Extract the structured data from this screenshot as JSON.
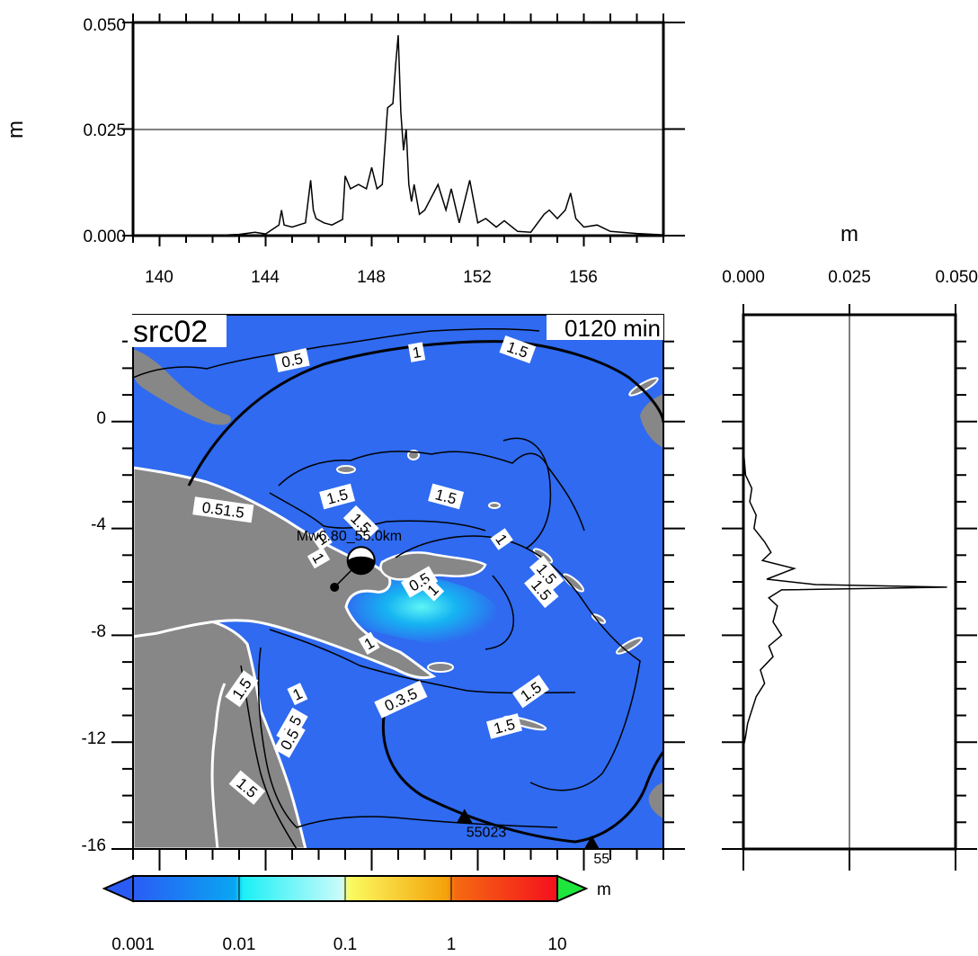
{
  "source_label": "src02",
  "time_label": "0120 min",
  "event_label": "Mw6.80_55.0km",
  "colors": {
    "ocean": "#2f6af0",
    "land": "#878787",
    "coast": "#ffffff",
    "contour": "#000000"
  },
  "stations": [
    {
      "id": "55023",
      "lon": 151.5,
      "lat": -14.8
    },
    {
      "id": "55",
      "lon": 156.3,
      "lat": -15.8
    }
  ],
  "epicenter": {
    "lon": 146.6,
    "lat": -6.2
  },
  "mechanism": {
    "lon": 147.6,
    "lat": -5.2
  },
  "contour_labels": [
    {
      "text": "0.5",
      "lon": 145.0,
      "lat": 2.3,
      "angle": -12
    },
    {
      "text": "1",
      "lon": 149.7,
      "lat": 2.6,
      "angle": -10
    },
    {
      "text": "1.5",
      "lon": 153.5,
      "lat": 2.7,
      "angle": 20
    },
    {
      "text": "0.51.5",
      "lon": 142.4,
      "lat": -3.3,
      "angle": 8
    },
    {
      "text": "1.5",
      "lon": 146.7,
      "lat": -2.8,
      "angle": -15
    },
    {
      "text": "1.5",
      "lon": 150.8,
      "lat": -2.8,
      "angle": 15
    },
    {
      "text": "1.5",
      "lon": 147.6,
      "lat": -3.8,
      "angle": 45
    },
    {
      "text": "1",
      "lon": 146.1,
      "lat": -4.4,
      "angle": -35
    },
    {
      "text": "1",
      "lon": 146.0,
      "lat": -5.1,
      "angle": 60
    },
    {
      "text": "1",
      "lon": 152.9,
      "lat": -4.4,
      "angle": 55
    },
    {
      "text": "0.5",
      "lon": 149.8,
      "lat": -6.0,
      "angle": -30
    },
    {
      "text": "1",
      "lon": 150.3,
      "lat": -6.3,
      "angle": -45
    },
    {
      "text": "1.5",
      "lon": 154.6,
      "lat": -5.7,
      "angle": 50
    },
    {
      "text": "1.5",
      "lon": 154.4,
      "lat": -6.3,
      "angle": 50
    },
    {
      "text": "1",
      "lon": 147.9,
      "lat": -8.3,
      "angle": -30
    },
    {
      "text": "1.5",
      "lon": 143.1,
      "lat": -10.0,
      "angle": -55
    },
    {
      "text": "1",
      "lon": 145.2,
      "lat": -10.2,
      "angle": -25
    },
    {
      "text": "0.3.5",
      "lon": 149.1,
      "lat": -10.4,
      "angle": -25
    },
    {
      "text": "1.5",
      "lon": 154.0,
      "lat": -10.1,
      "angle": -35
    },
    {
      "text": "1.5",
      "lon": 145.0,
      "lat": -11.4,
      "angle": -60
    },
    {
      "text": "0.5",
      "lon": 144.9,
      "lat": -11.9,
      "angle": -60
    },
    {
      "text": "1.5",
      "lon": 153.0,
      "lat": -11.4,
      "angle": -15
    },
    {
      "text": "1.5",
      "lon": 143.3,
      "lat": -13.7,
      "angle": 40
    }
  ],
  "map": {
    "lon_range": [
      139,
      159
    ],
    "lat_range": [
      -16,
      4
    ],
    "lon_ticks": [
      140,
      144,
      148,
      152,
      156
    ],
    "lat_ticks": [
      0,
      -4,
      -8,
      -12,
      -16
    ]
  },
  "top_plot": {
    "ylabel": "m",
    "y_ticks": [
      "0.000",
      "0.025",
      "0.050"
    ],
    "x_ticks": [
      "140",
      "144",
      "148",
      "152",
      "156"
    ]
  },
  "right_plot": {
    "xlabel": "m",
    "x_ticks": [
      "0.000",
      "0.025",
      "0.050"
    ]
  },
  "colorbar": {
    "unit": "m",
    "tick_labels": [
      "0.001",
      "0.01",
      "0.1",
      "1",
      "10"
    ]
  },
  "chart_data": [
    {
      "type": "line",
      "ylabel": "m",
      "ylim": [
        0,
        0.05
      ],
      "xlim": [
        139,
        159
      ],
      "y_tick_values": [
        0,
        0.025,
        0.05
      ],
      "x_tick_values": [
        140,
        144,
        148,
        152,
        156
      ],
      "x": [
        139.0,
        142.0,
        143.0,
        143.6,
        144.0,
        144.5,
        144.6,
        144.7,
        145.0,
        145.5,
        145.7,
        145.8,
        145.9,
        146.2,
        146.5,
        146.9,
        147.0,
        147.2,
        147.5,
        147.8,
        148.0,
        148.2,
        148.4,
        148.6,
        148.8,
        148.9,
        149.0,
        149.1,
        149.2,
        149.3,
        149.4,
        149.5,
        149.6,
        149.8,
        150.0,
        150.5,
        150.8,
        151.0,
        151.3,
        151.7,
        152.0,
        152.3,
        152.7,
        153.0,
        153.5,
        154.0,
        154.5,
        154.7,
        155.0,
        155.3,
        155.5,
        155.7,
        156.0,
        156.5,
        157.0,
        158.0,
        159.0
      ],
      "y": [
        0.0,
        0.0,
        0.0003,
        0.0008,
        0.0004,
        0.0025,
        0.006,
        0.0025,
        0.002,
        0.003,
        0.013,
        0.006,
        0.004,
        0.003,
        0.0025,
        0.0038,
        0.014,
        0.011,
        0.012,
        0.011,
        0.016,
        0.011,
        0.012,
        0.03,
        0.031,
        0.04,
        0.047,
        0.029,
        0.02,
        0.025,
        0.012,
        0.008,
        0.012,
        0.005,
        0.006,
        0.012,
        0.006,
        0.011,
        0.003,
        0.013,
        0.003,
        0.004,
        0.002,
        0.0035,
        0.001,
        0.0008,
        0.005,
        0.006,
        0.004,
        0.006,
        0.01,
        0.004,
        0.002,
        0.0025,
        0.001,
        0.0005,
        0.0002
      ]
    },
    {
      "type": "line",
      "xlabel": "m",
      "xlim": [
        0,
        0.05
      ],
      "ylim": [
        -16,
        4
      ],
      "x_tick_values": [
        0,
        0.025,
        0.05
      ],
      "lat": [
        -1.0,
        -2.0,
        -2.5,
        -3.0,
        -3.5,
        -4.0,
        -4.5,
        -4.9,
        -5.2,
        -5.5,
        -5.9,
        -6.1,
        -6.2,
        -6.3,
        -6.6,
        -6.9,
        -7.5,
        -8.0,
        -8.4,
        -8.8,
        -9.3,
        -9.8,
        -10.3,
        -10.8,
        -11.3,
        -11.8,
        -12.2
      ],
      "value": [
        0.0,
        0.0005,
        0.002,
        0.0015,
        0.003,
        0.0025,
        0.005,
        0.0065,
        0.0045,
        0.012,
        0.0055,
        0.017,
        0.048,
        0.009,
        0.006,
        0.008,
        0.007,
        0.009,
        0.006,
        0.007,
        0.004,
        0.005,
        0.003,
        0.002,
        0.001,
        0.0005,
        0.0
      ]
    }
  ]
}
